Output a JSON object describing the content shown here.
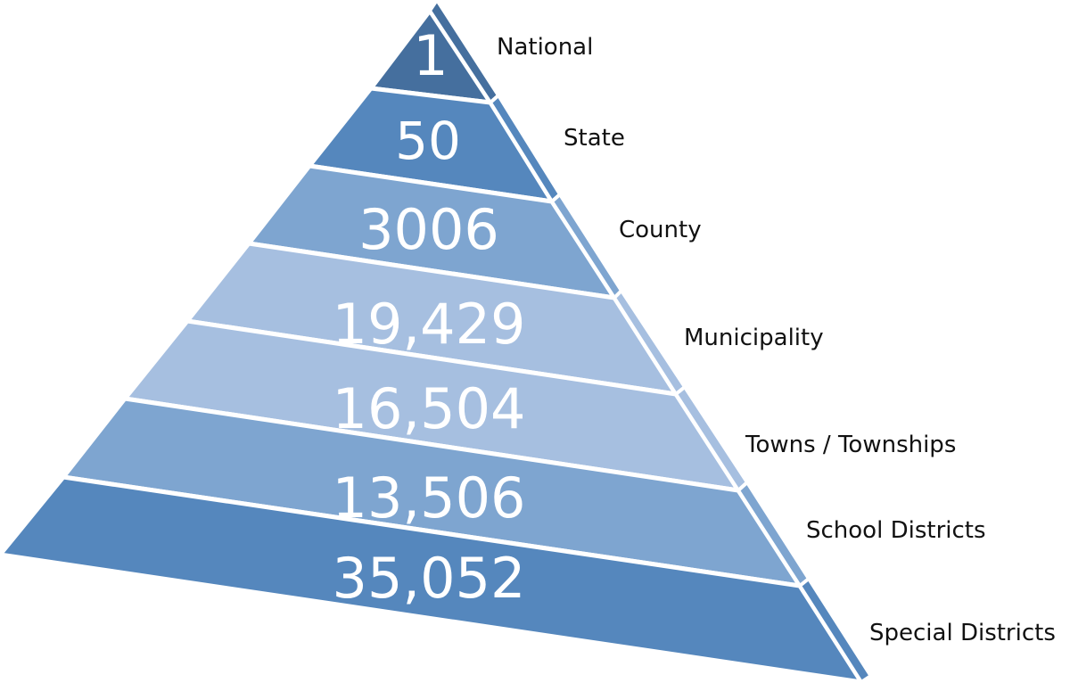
{
  "colors": {
    "dark": "#456f9e",
    "medium": "#5587bd",
    "light": "#7ea5d0",
    "lighter": "#a6bfe0",
    "divider": "#ffffff",
    "label_text": "#111111"
  },
  "tiers": [
    {
      "count": "1",
      "label": "National",
      "fill": "#456f9e",
      "side_fill": "#456f9e"
    },
    {
      "count": "50",
      "label": "State",
      "fill": "#5587bd",
      "side_fill": "#5587bd"
    },
    {
      "count": "3006",
      "label": "County",
      "fill": "#7ea5d0",
      "side_fill": "#7ea5d0"
    },
    {
      "count": "19,429",
      "label": "Municipality",
      "fill": "#a6bfe0",
      "side_fill": "#a6bfe0"
    },
    {
      "count": "16,504",
      "label": "Towns / Townships",
      "fill": "#a6bfe0",
      "side_fill": "#a6bfe0"
    },
    {
      "count": "13,506",
      "label": "School Districts",
      "fill": "#7ea5d0",
      "side_fill": "#7ea5d0"
    },
    {
      "count": "35,052",
      "label": "Special Districts",
      "fill": "#5587bd",
      "side_fill": "#5587bd"
    }
  ]
}
